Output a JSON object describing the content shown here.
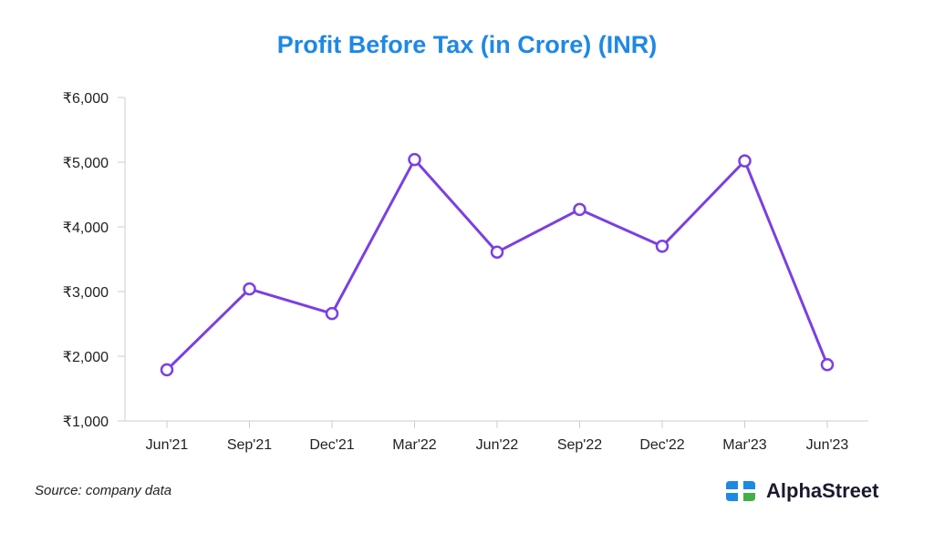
{
  "title": "Profit Before Tax (in Crore) (INR)",
  "source": "Source: company data",
  "brand": {
    "name": "AlphaStreet",
    "logo_icon": "alphastreet-logo-icon"
  },
  "colors": {
    "title": "#1e88e5",
    "line": "#7b3fe4",
    "axis": "#cccccc",
    "text": "#222222"
  },
  "chart_data": {
    "type": "line",
    "categories": [
      "Jun'21",
      "Sep'21",
      "Dec'21",
      "Mar'22",
      "Jun'22",
      "Sep'22",
      "Dec'22",
      "Mar'23",
      "Jun'23"
    ],
    "series": [
      {
        "values": [
          1790,
          3040,
          2660,
          5040,
          3610,
          4270,
          3700,
          5020,
          1870
        ]
      }
    ],
    "y_ticks": [
      "₹1,000",
      "₹2,000",
      "₹3,000",
      "₹4,000",
      "₹5,000",
      "₹6,000"
    ],
    "ylim": [
      1000,
      6000
    ],
    "grid": false,
    "markers": "hollow-circle"
  }
}
